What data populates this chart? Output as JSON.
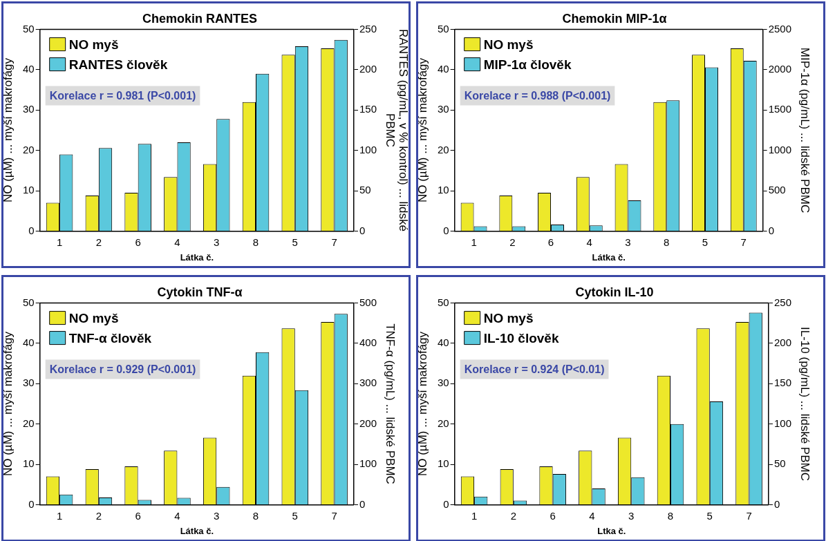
{
  "chart_data": [
    {
      "type": "bar",
      "title": "Chemokin RANTES",
      "xlabel": "Látka č.",
      "ylabel": "NO (µM) ... myší makrofágy",
      "y2label": "RANTES (pg/mL, v % kontrol) ... lidské PBMC",
      "categories": [
        "1",
        "2",
        "6",
        "4",
        "3",
        "8",
        "5",
        "7"
      ],
      "series": [
        {
          "name": "NO myš",
          "color": "#ede82a",
          "values": [
            7,
            8.8,
            9.5,
            13.4,
            16.6,
            32,
            43.7,
            45.3
          ]
        },
        {
          "name": "RANTES člověk",
          "color": "#5bc8dc",
          "axis": "y2",
          "values": [
            95,
            103,
            108,
            110,
            139,
            195,
            229,
            237
          ]
        }
      ],
      "ylim": [
        0,
        50
      ],
      "yticks": [
        0,
        10,
        20,
        30,
        40,
        50
      ],
      "y2lim": [
        0,
        250
      ],
      "y2ticks": [
        0,
        50,
        100,
        150,
        200,
        250
      ],
      "grid": false,
      "legend": "top left",
      "annotations": [
        "Korelace r = 0.981 (P<0.001)"
      ]
    },
    {
      "type": "bar",
      "title": "Chemokin MIP-1α",
      "xlabel": "Látka č.",
      "ylabel": "NO (µM) ... myší makrofágy",
      "y2label": "MIP-1α (pg/mL) ... lidské PBMC",
      "categories": [
        "1",
        "2",
        "6",
        "4",
        "3",
        "8",
        "5",
        "7"
      ],
      "series": [
        {
          "name": "NO myš",
          "color": "#ede82a",
          "values": [
            7,
            8.8,
            9.5,
            13.4,
            16.6,
            32,
            43.7,
            45.3
          ]
        },
        {
          "name": "MIP-1α člověk",
          "color": "#5bc8dc",
          "axis": "y2",
          "values": [
            60,
            60,
            80,
            70,
            380,
            1620,
            2030,
            2110
          ]
        }
      ],
      "ylim": [
        0,
        50
      ],
      "yticks": [
        0,
        10,
        20,
        30,
        40,
        50
      ],
      "y2lim": [
        0,
        2500
      ],
      "y2ticks": [
        0,
        500,
        1000,
        1500,
        2000,
        2500
      ],
      "grid": false,
      "legend": "top left",
      "annotations": [
        "Korelace r = 0.988 (P<0.001)"
      ]
    },
    {
      "type": "bar",
      "title": "Cytokin TNF-α",
      "xlabel": "Látka č.",
      "ylabel": "NO (µM) ... myší makrofágy",
      "y2label": "TNF-α (pg/mL) ... lidské PBMC",
      "categories": [
        "1",
        "2",
        "6",
        "4",
        "3",
        "8",
        "5",
        "7"
      ],
      "series": [
        {
          "name": "NO myš",
          "color": "#ede82a",
          "values": [
            7,
            8.8,
            9.5,
            13.4,
            16.6,
            32,
            43.7,
            45.3
          ]
        },
        {
          "name": "TNF-α člověk",
          "color": "#5bc8dc",
          "axis": "y2",
          "values": [
            25,
            18,
            12,
            17,
            44,
            378,
            284,
            473
          ]
        }
      ],
      "ylim": [
        0,
        50
      ],
      "yticks": [
        0,
        10,
        20,
        30,
        40,
        50
      ],
      "y2lim": [
        0,
        500
      ],
      "y2ticks": [
        0,
        100,
        200,
        300,
        400,
        500
      ],
      "grid": false,
      "legend": "top left",
      "annotations": [
        "Korelace r = 0.929 (P<0.001)"
      ]
    },
    {
      "type": "bar",
      "title": "Cytokin IL-10",
      "xlabel": "Ltka č.",
      "ylabel": "NO (µM) ... myší makrofágy",
      "y2label": "IL-10 (pg/mL) ... lidské PBMC",
      "categories": [
        "1",
        "2",
        "6",
        "4",
        "3",
        "8",
        "5",
        "7"
      ],
      "series": [
        {
          "name": "NO myš",
          "color": "#ede82a",
          "values": [
            7,
            8.8,
            9.5,
            13.4,
            16.6,
            32,
            43.7,
            45.3
          ]
        },
        {
          "name": "IL-10 člověk",
          "color": "#5bc8dc",
          "axis": "y2",
          "values": [
            10,
            5,
            38,
            20,
            34,
            100,
            128,
            238
          ]
        }
      ],
      "ylim": [
        0,
        50
      ],
      "yticks": [
        0,
        10,
        20,
        30,
        40,
        50
      ],
      "y2lim": [
        0,
        250
      ],
      "y2ticks": [
        0,
        50,
        100,
        150,
        200,
        250
      ],
      "grid": false,
      "legend": "top left",
      "annotations": [
        "Korelace r = 0.924 (P<0.01)"
      ]
    }
  ]
}
